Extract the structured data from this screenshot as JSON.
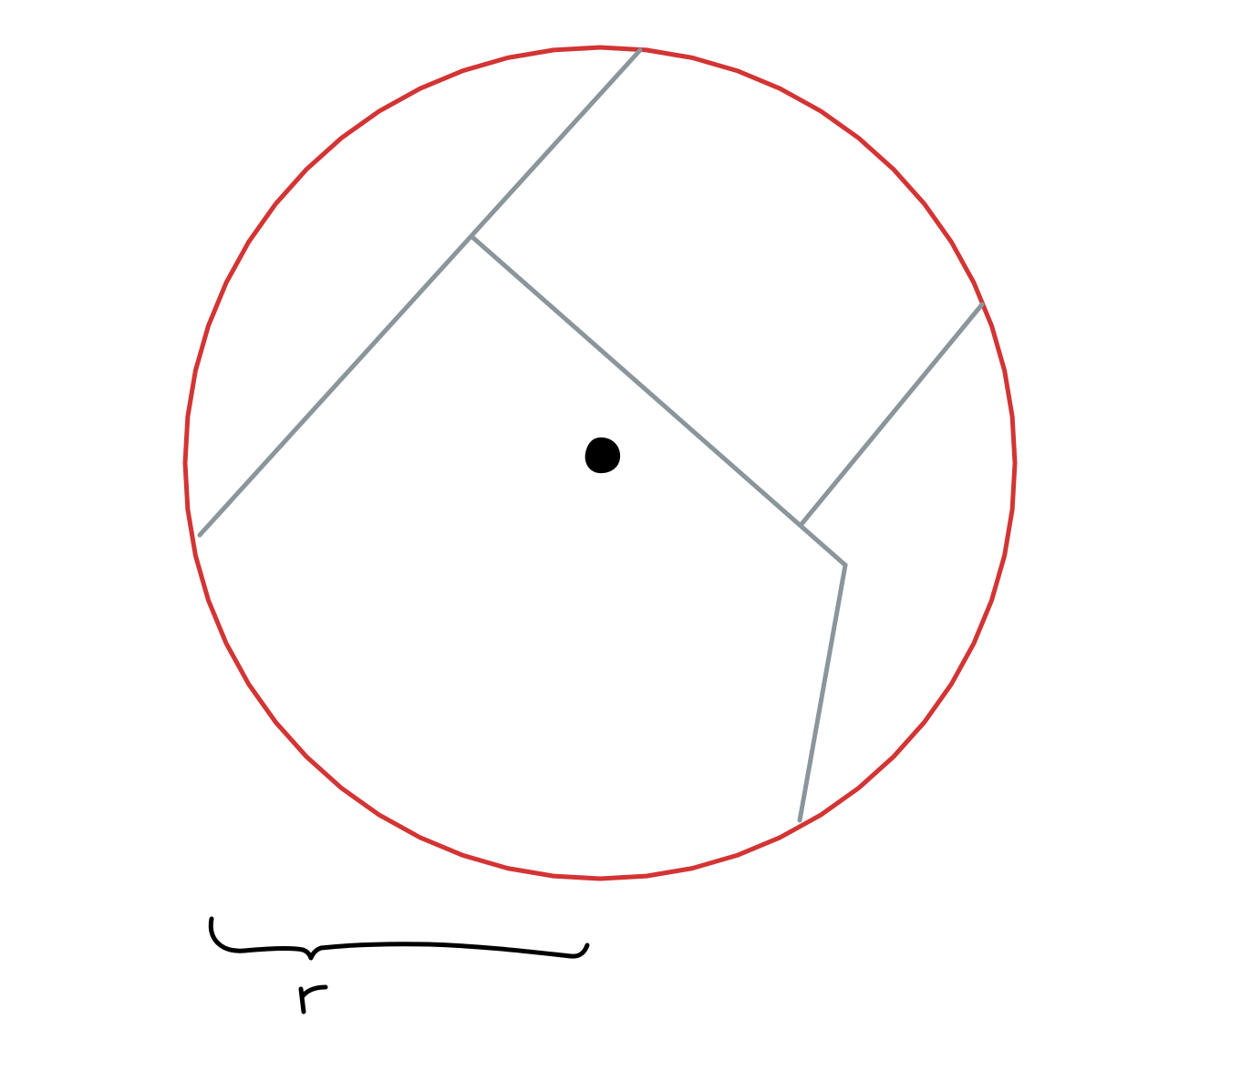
{
  "diagram": {
    "colors": {
      "background": "#ffffff",
      "circle": "#d33434",
      "segments": "#8a959c",
      "ink": "#000000"
    },
    "circle_shape": "polygon-approximated-circle",
    "center_mark": "filled-dot",
    "segment_count": 5,
    "radius_brace": "curly-brace",
    "radius_label": "r"
  }
}
